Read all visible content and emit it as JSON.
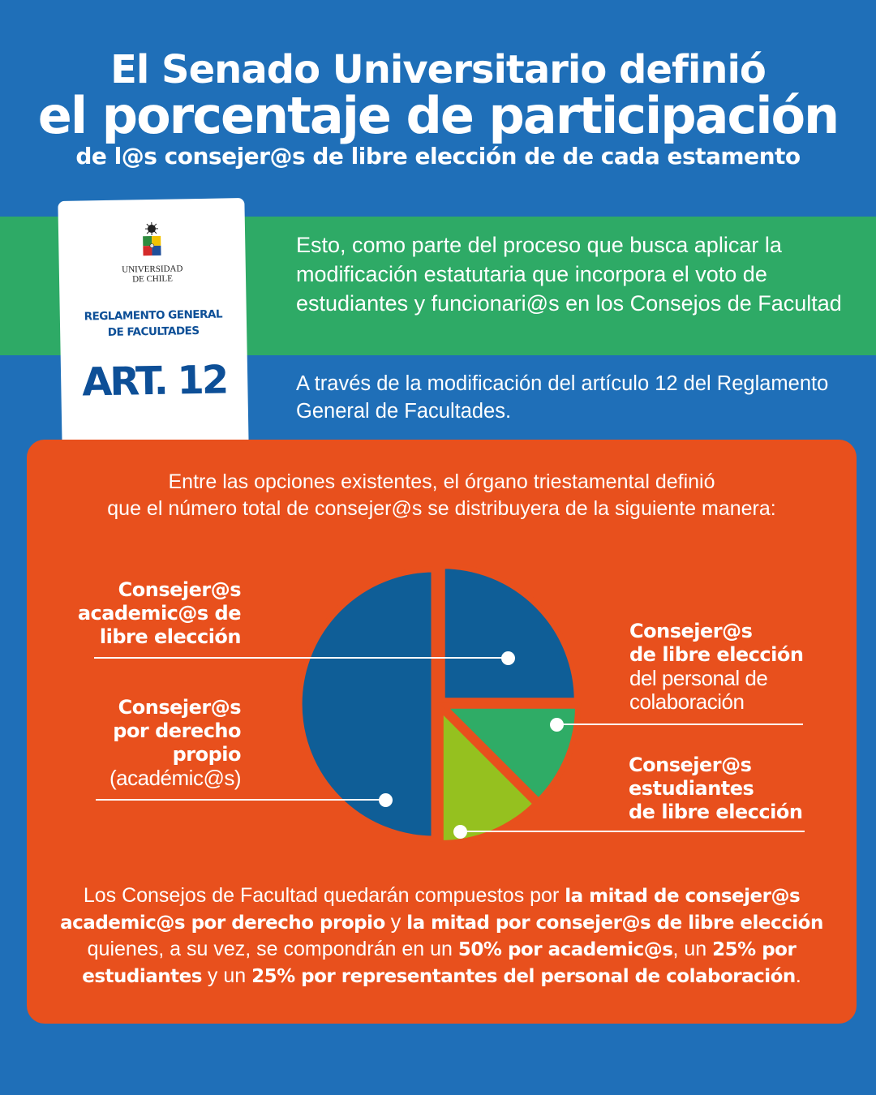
{
  "header": {
    "line1": "El Senado Universitario definió",
    "line2": "el porcentaje de participación",
    "line3": "de l@s consejer@s de libre elección de de cada estamento"
  },
  "card": {
    "university": [
      "UNIVERSIDAD",
      "DE CHILE"
    ],
    "regulation": [
      "REGLAMENTO GENERAL",
      "DE FACULTADES"
    ],
    "article": "ART. 12"
  },
  "intro_paragraph": "Esto, como parte del proceso que busca aplicar la modificación estatutaria que incorpora el voto de estudiantes y funcionari@s en los Consejos de Facultad",
  "second_paragraph": "A través de la modificación del artículo 12 del Reglamento General de Facultades.",
  "panel": {
    "intro": [
      "Entre las opciones existentes, el órgano triestamental definió",
      "que el número total de consejer@s se distribuyera de la siguiente manera:"
    ],
    "bottom": [
      {
        "text": "Los Consejos de Facultad quedarán compuestos por ",
        "bold": false
      },
      {
        "text": "la mitad de consejer@s academic@s por derecho propio",
        "bold": true
      },
      {
        "text": " y ",
        "bold": false
      },
      {
        "text": "la mitad por consejer@s de libre elección",
        "bold": true
      },
      {
        "text": " quienes, a su vez, se compondrán en un ",
        "bold": false
      },
      {
        "text": "50% por academic@s",
        "bold": true
      },
      {
        "text": ", un ",
        "bold": false
      },
      {
        "text": "25% por estudiantes",
        "bold": true
      },
      {
        "text": " y un ",
        "bold": false
      },
      {
        "text": "25% por representantes del personal de colaboración",
        "bold": true
      },
      {
        "text": ".",
        "bold": false
      }
    ]
  },
  "chart_data": {
    "type": "pie",
    "title": "",
    "slices": [
      {
        "label": "Consejer@s academic@s de libre elección",
        "value": 25,
        "color": "#0f5e97",
        "label_bold": [
          "Consejer@s",
          "academic@s de",
          "libre elección"
        ],
        "label_regular": []
      },
      {
        "label": "Consejer@s de libre elección del personal de colaboración",
        "value": 12.5,
        "color": "#2fac66",
        "label_bold": [
          "Consejer@s",
          "de libre elección"
        ],
        "label_regular": [
          "del personal de",
          "colaboración"
        ]
      },
      {
        "label": "Consejer@s estudiantes de libre elección",
        "value": 12.5,
        "color": "#95c11f",
        "label_bold": [
          "Consejer@s",
          "estudiantes",
          "de libre elección"
        ],
        "label_regular": []
      },
      {
        "label": "Consejer@s por derecho propio (académic@s)",
        "value": 50,
        "color": "#0f5e97",
        "label_bold": [
          "Consejer@s",
          "por derecho",
          "propio"
        ],
        "label_regular": [
          "(académic@s)"
        ]
      }
    ]
  },
  "colors": {
    "background": "#1f6fb8",
    "band": "#2eaa66",
    "panel": "#e8501d"
  }
}
